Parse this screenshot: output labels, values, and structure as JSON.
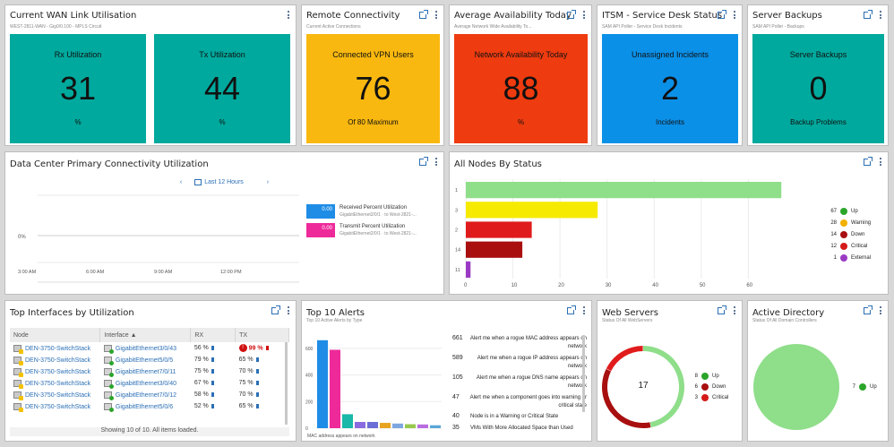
{
  "tiles_row": [
    {
      "title": "Current WAN Link Utilisation",
      "subtitle": "WEST-2811-WAN - Gig0/0.100 - MPLS Circuit",
      "tiles": [
        {
          "label": "Rx Utilization",
          "value": "31",
          "bottom": "%",
          "color": "#00a99d"
        },
        {
          "label": "Tx Utilization",
          "value": "44",
          "bottom": "%",
          "color": "#00a99d"
        }
      ]
    },
    {
      "title": "Remote Connectivity",
      "subtitle": "Current Active Connections",
      "tiles": [
        {
          "label": "Connected VPN Users",
          "value": "76",
          "bottom": "Of 80 Maximum",
          "color": "#f9b80f"
        }
      ]
    },
    {
      "title": "Average Availability Today",
      "subtitle": "Average Network Wide Availability To...",
      "tiles": [
        {
          "label": "Network Availability Today",
          "value": "88",
          "bottom": "%",
          "color": "#ee3b0f"
        }
      ]
    },
    {
      "title": "ITSM - Service Desk Status",
      "subtitle": "SAM API Poller - Service Desk Incidents",
      "tiles": [
        {
          "label": "Unassigned Incidents",
          "value": "2",
          "bottom": "Incidents",
          "color": "#0b90e8"
        }
      ]
    },
    {
      "title": "Server Backups",
      "subtitle": "SAM API Poller - Backups",
      "tiles": [
        {
          "label": "Server Backups",
          "value": "0",
          "bottom": "Backup Problems",
          "color": "#00a99d"
        }
      ]
    }
  ],
  "dc": {
    "title": "Data Center Primary Connectivity Utilization",
    "nav_label": "Last 12 Hours",
    "prev": "‹",
    "next": "›",
    "y_label": "0%",
    "x_ticks": [
      "3:00 AM",
      "6:00 AM",
      "9:00 AM",
      "12:00 PM"
    ],
    "legend": [
      {
        "value": "0.00",
        "name": "Received Percent Utilization",
        "sub": "GigabitEthernet2/0/1 · to West-2821-...",
        "color": "#1f8de6"
      },
      {
        "value": "0.00",
        "name": "Transmit Percent Utilization",
        "sub": "GigabitEthernet2/0/1 · to West-2821-...",
        "color": "#ee2a9a"
      }
    ]
  },
  "status": {
    "title": "All Nodes By Status",
    "chart_data": {
      "type": "bar",
      "orientation": "horizontal",
      "categories": [
        "1",
        "3",
        "2",
        "14",
        "11"
      ],
      "values": [
        67,
        28,
        14,
        12,
        1
      ],
      "colors": [
        "#8fde8a",
        "#f5ea00",
        "#e01b1b",
        "#a90f0f",
        "#9a3ac4"
      ],
      "x_ticks": [
        "0",
        "10",
        "20",
        "30",
        "40",
        "50",
        "60"
      ],
      "xlim": [
        0,
        70
      ]
    },
    "legend": [
      {
        "count": "67",
        "label": "Up",
        "color": "#2aa52a",
        "icon": "check-icon"
      },
      {
        "count": "28",
        "label": "Warning",
        "color": "#f2b100",
        "icon": "warning-icon"
      },
      {
        "count": "14",
        "label": "Down",
        "color": "#a80f0f",
        "icon": "down-icon"
      },
      {
        "count": "12",
        "label": "Critical",
        "color": "#d41a1a",
        "icon": "critical-icon"
      },
      {
        "count": "1",
        "label": "External",
        "color": "#9a3ac4",
        "icon": "external-icon"
      }
    ]
  },
  "top_if": {
    "title": "Top Interfaces by Utilization",
    "columns": [
      "Node",
      "Interface ▲",
      "RX",
      "TX"
    ],
    "rows": [
      {
        "node": "DEN-3750-SwitchStack",
        "iface": "GigabitEthernet3/0/43",
        "rx": "56 %",
        "tx": "99 %",
        "tx_crit": true
      },
      {
        "node": "DEN-3750-SwitchStack",
        "iface": "GigabitEthernet5/0/5",
        "rx": "79 %",
        "tx": "65 %",
        "tx_crit": false
      },
      {
        "node": "DEN-3750-SwitchStack",
        "iface": "GigabitEthernet7/0/11",
        "rx": "75 %",
        "tx": "70 %",
        "tx_crit": false
      },
      {
        "node": "DEN-3750-SwitchStack",
        "iface": "GigabitEthernet3/0/40",
        "rx": "67 %",
        "tx": "75 %",
        "tx_crit": false
      },
      {
        "node": "DEN-3750-SwitchStack",
        "iface": "GigabitEthernet7/0/12",
        "rx": "58 %",
        "tx": "70 %",
        "tx_crit": false
      },
      {
        "node": "DEN-3750-SwitchStack",
        "iface": "GigabitEthernet5/0/6",
        "rx": "52 %",
        "tx": "65 %",
        "tx_crit": false
      }
    ],
    "footer": "Showing 10 of 10. All items loaded."
  },
  "alerts": {
    "title": "Top 10 Alerts",
    "subtitle": "Top 10 Active Alerts by Type",
    "chart_data": {
      "type": "bar",
      "values": [
        661,
        589,
        105,
        47,
        47,
        40,
        35,
        30,
        28,
        22
      ],
      "colors": [
        "#1f8de6",
        "#ee2a9a",
        "#19b8a8",
        "#8a6adf",
        "#6b6cd6",
        "#e8a321",
        "#7ea7e0",
        "#98c94e",
        "#b86de0",
        "#5aa7d6"
      ],
      "y_ticks": [
        "600",
        "400",
        "200",
        "0"
      ],
      "ylim": [
        0,
        700
      ],
      "x_label": "MAC address appears on network"
    },
    "list": [
      {
        "count": "661",
        "text": "Alert me when a rogue MAC address appears on network"
      },
      {
        "count": "589",
        "text": "Alert me when a rogue IP address appears on network"
      },
      {
        "count": "105",
        "text": "Alert me when a rogue DNS name appears on network"
      },
      {
        "count": "47",
        "text": "Alert me when a component goes into warning or critical state"
      },
      {
        "count": "40",
        "text": "Node is in a Warning or Critical State"
      },
      {
        "count": "35",
        "text": "VMs With More Allocated Space than Used"
      }
    ]
  },
  "web": {
    "title": "Web Servers",
    "subtitle": "Status Of All WebServers",
    "center": "17",
    "chart_data": {
      "type": "pie",
      "labels": [
        "Up",
        "Down",
        "Critical"
      ],
      "values": [
        8,
        6,
        3
      ],
      "colors": [
        "#8fde8a",
        "#a80f0f",
        "#e01b1b"
      ]
    },
    "legend": [
      {
        "count": "8",
        "label": "Up",
        "color": "#2aa52a"
      },
      {
        "count": "6",
        "label": "Down",
        "color": "#a80f0f"
      },
      {
        "count": "3",
        "label": "Critical",
        "color": "#d41a1a"
      }
    ]
  },
  "ad": {
    "title": "Active Directory",
    "subtitle": "Status Of All Domain Controllers",
    "chart_data": {
      "type": "pie",
      "labels": [
        "Up"
      ],
      "values": [
        7
      ],
      "colors": [
        "#8fde8a"
      ]
    },
    "legend": [
      {
        "count": "7",
        "label": "Up",
        "color": "#2aa52a"
      }
    ]
  }
}
